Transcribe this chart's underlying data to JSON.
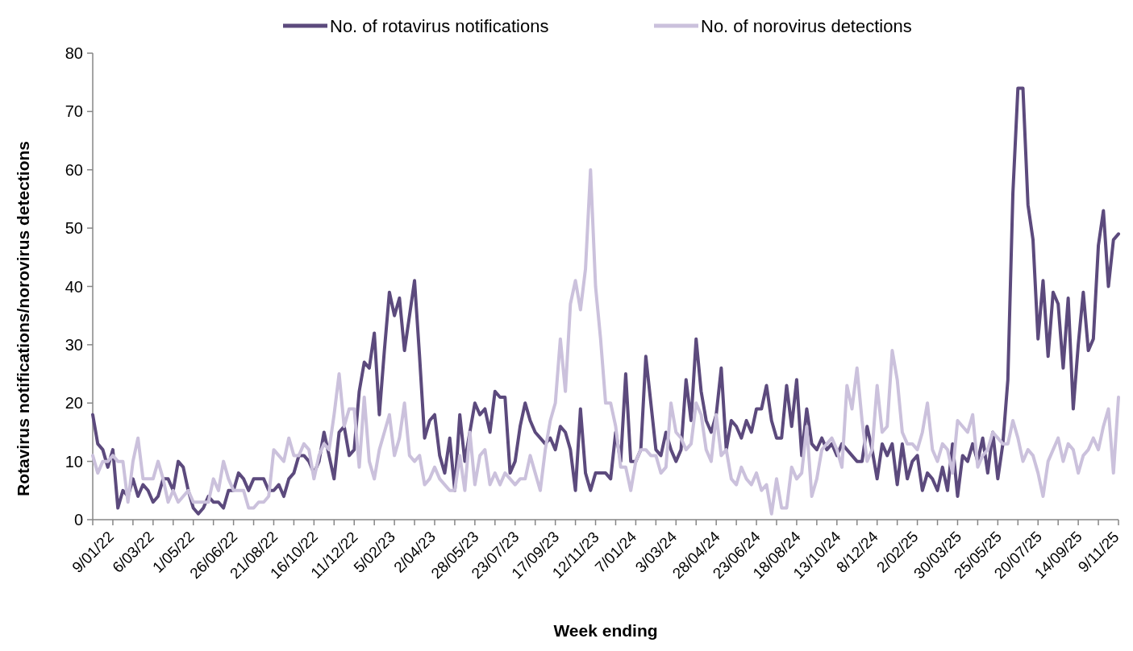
{
  "chart_data": {
    "type": "line",
    "xlabel": "Week ending",
    "ylabel": "Rotavirus notifications/norovirus detections",
    "legend": "top",
    "ylim": [
      0,
      80
    ],
    "yticks": [
      0,
      10,
      20,
      30,
      40,
      50,
      60,
      70,
      80
    ],
    "categories": [
      "9/01/22",
      null,
      null,
      null,
      null,
      null,
      null,
      null,
      "6/03/22",
      null,
      null,
      null,
      null,
      null,
      null,
      null,
      "1/05/22",
      null,
      null,
      null,
      null,
      null,
      null,
      null,
      "26/06/22",
      null,
      null,
      null,
      null,
      null,
      null,
      null,
      "21/08/22",
      null,
      null,
      null,
      null,
      null,
      null,
      null,
      "16/10/22",
      null,
      null,
      null,
      null,
      null,
      null,
      null,
      "11/12/22",
      null,
      null,
      null,
      null,
      null,
      null,
      null,
      "5/02/23",
      null,
      null,
      null,
      null,
      null,
      null,
      null,
      "2/04/23",
      null,
      null,
      null,
      null,
      null,
      null,
      null,
      "28/05/23",
      null,
      null,
      null,
      null,
      null,
      null,
      null,
      "23/07/23",
      null,
      null,
      null,
      null,
      null,
      null,
      null,
      "17/09/23",
      null,
      null,
      null,
      null,
      null,
      null,
      null,
      "12/11/23",
      null,
      null,
      null,
      null,
      null,
      null,
      null,
      "7/01/24",
      null,
      null,
      null,
      null,
      null,
      null,
      null,
      "3/03/24",
      null,
      null,
      null,
      null,
      null,
      null,
      null,
      "28/04/24",
      null,
      null,
      null,
      null,
      null,
      null,
      null,
      "23/06/24",
      null,
      null,
      null,
      null,
      null,
      null,
      null,
      "18/08/24",
      null,
      null,
      null,
      null,
      null,
      null,
      null,
      "13/10/24",
      null,
      null,
      null,
      null,
      null,
      null,
      null,
      "8/12/24",
      null,
      null,
      null,
      null,
      null,
      null,
      null,
      "2/02/25",
      null,
      null,
      null,
      null,
      null,
      null,
      null,
      "30/03/25",
      null,
      null,
      null,
      null,
      null,
      null,
      null,
      "25/05/25",
      null,
      null,
      null,
      null,
      null,
      null,
      null,
      "20/07/25",
      null,
      null,
      null,
      null,
      null,
      null,
      null,
      "14/09/25",
      null,
      null,
      null,
      null,
      null,
      null,
      null,
      "9/11/25",
      null,
      null,
      null,
      null
    ],
    "series": [
      {
        "name": "No. of rotavirus notifications",
        "color": "#5c4a7d",
        "values": [
          18,
          13,
          12,
          9,
          12,
          2,
          5,
          4,
          7,
          4,
          6,
          5,
          3,
          4,
          7,
          7,
          5,
          10,
          9,
          5,
          2,
          1,
          2,
          4,
          3,
          3,
          2,
          5,
          5,
          8,
          7,
          5,
          7,
          7,
          7,
          5,
          5,
          6,
          4,
          7,
          8,
          11,
          11,
          10,
          8,
          10,
          15,
          11,
          7,
          15,
          16,
          11,
          12,
          22,
          27,
          26,
          32,
          18,
          29,
          39,
          35,
          38,
          29,
          35,
          41,
          28,
          14,
          17,
          18,
          11,
          8,
          14,
          5,
          18,
          10,
          15,
          20,
          18,
          19,
          15,
          22,
          21,
          21,
          8,
          10,
          16,
          20,
          17,
          15,
          14,
          13,
          14,
          12,
          16,
          15,
          12,
          5,
          19,
          8,
          5,
          8,
          8,
          8,
          7,
          15,
          10,
          25,
          10,
          10,
          12,
          28,
          20,
          12,
          11,
          15,
          12,
          10,
          12,
          24,
          17,
          31,
          22,
          17,
          15,
          18,
          26,
          12,
          17,
          16,
          14,
          17,
          15,
          19,
          19,
          23,
          17,
          14,
          14,
          23,
          16,
          24,
          11,
          19,
          13,
          12,
          14,
          12,
          13,
          11,
          13,
          12,
          11,
          10,
          10,
          16,
          12,
          7,
          13,
          11,
          13,
          6,
          13,
          7,
          10,
          11,
          5,
          8,
          7,
          5,
          9,
          5,
          13,
          4,
          11,
          10,
          13,
          10,
          14,
          8,
          15,
          7,
          13,
          24,
          56,
          74,
          74,
          54,
          48,
          31,
          41,
          28,
          39,
          37,
          26,
          38,
          19,
          30,
          39,
          29,
          31,
          47,
          53,
          40,
          48,
          49
        ]
      },
      {
        "name": "No. of norovirus detections",
        "color": "#cbc1dc",
        "values": [
          11,
          8,
          10,
          10,
          11,
          10,
          10,
          3,
          10,
          14,
          7,
          7,
          7,
          10,
          7,
          3,
          5,
          3,
          4,
          5,
          3,
          3,
          3,
          3,
          7,
          5,
          10,
          7,
          5,
          5,
          5,
          2,
          2,
          3,
          3,
          4,
          12,
          11,
          10,
          14,
          11,
          11,
          13,
          12,
          7,
          11,
          13,
          12,
          18,
          25,
          16,
          19,
          19,
          9,
          21,
          10,
          7,
          12,
          15,
          18,
          11,
          14,
          20,
          11,
          10,
          11,
          6,
          7,
          9,
          7,
          6,
          5,
          5,
          11,
          5,
          15,
          6,
          11,
          12,
          6,
          8,
          6,
          8,
          7,
          6,
          7,
          7,
          11,
          8,
          5,
          12,
          17,
          20,
          31,
          22,
          37,
          41,
          36,
          43,
          60,
          40,
          31,
          20,
          20,
          16,
          9,
          9,
          5,
          10,
          12,
          12,
          11,
          11,
          8,
          9,
          20,
          15,
          14,
          12,
          13,
          20,
          18,
          12,
          10,
          18,
          11,
          12,
          7,
          6,
          9,
          7,
          6,
          8,
          5,
          6,
          1,
          7,
          2,
          2,
          9,
          7,
          8,
          16,
          4,
          7,
          12,
          13,
          14,
          12,
          9,
          23,
          19,
          26,
          17,
          10,
          12,
          23,
          15,
          16,
          29,
          24,
          15,
          13,
          13,
          12,
          15,
          20,
          12,
          10,
          13,
          12,
          8,
          17,
          16,
          15,
          18,
          9,
          11,
          12,
          15,
          14,
          13,
          13,
          17,
          14,
          10,
          12,
          11,
          8,
          4,
          10,
          12,
          14,
          10,
          13,
          12,
          8,
          11,
          12,
          14,
          12,
          16,
          19,
          8,
          21
        ]
      }
    ]
  }
}
